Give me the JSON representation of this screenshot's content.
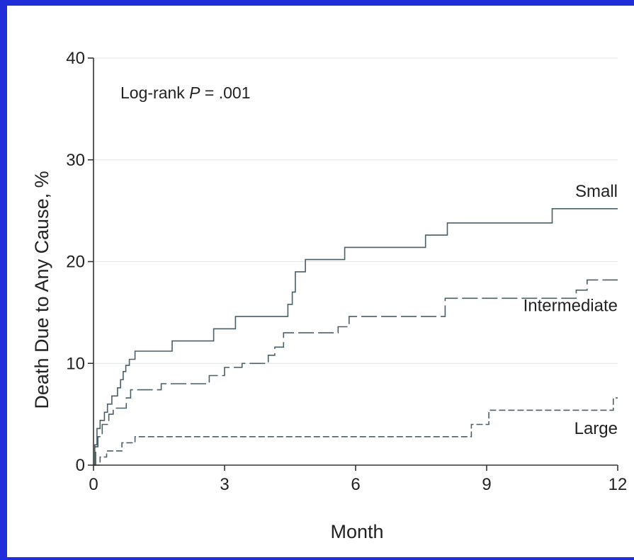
{
  "colors": {
    "frame": "#1f2ed8",
    "background": "#ffffff",
    "series_line": "#4a5f66",
    "grid": "#dfe6ea",
    "axis": "#333333",
    "text": "#222222"
  },
  "chart_data": {
    "type": "line",
    "step": true,
    "title": "",
    "xlabel": "Month",
    "ylabel": "Death Due to Any Cause, %",
    "xlim": [
      0,
      12
    ],
    "ylim": [
      0,
      40
    ],
    "xticks": [
      0,
      3,
      6,
      9,
      12
    ],
    "yticks": [
      0,
      10,
      20,
      30,
      40
    ],
    "grid": "horizontal",
    "annotation": {
      "prefix": "Log-rank ",
      "italic": "P",
      "suffix": " = .001"
    },
    "series": [
      {
        "name": "Small",
        "style": "solid",
        "points": [
          [
            0,
            0
          ],
          [
            0.03,
            2.0
          ],
          [
            0.08,
            3.6
          ],
          [
            0.15,
            4.4
          ],
          [
            0.25,
            5.2
          ],
          [
            0.32,
            6.0
          ],
          [
            0.42,
            6.8
          ],
          [
            0.55,
            7.6
          ],
          [
            0.62,
            8.4
          ],
          [
            0.68,
            9.2
          ],
          [
            0.74,
            9.8
          ],
          [
            0.82,
            10.4
          ],
          [
            0.95,
            11.2
          ],
          [
            1.8,
            12.2
          ],
          [
            2.75,
            13.4
          ],
          [
            3.25,
            14.6
          ],
          [
            4.45,
            15.8
          ],
          [
            4.55,
            17.0
          ],
          [
            4.62,
            19.0
          ],
          [
            4.85,
            20.2
          ],
          [
            5.75,
            21.4
          ],
          [
            7.6,
            22.6
          ],
          [
            8.1,
            23.8
          ],
          [
            10.5,
            25.2
          ],
          [
            12.0,
            25.2
          ]
        ]
      },
      {
        "name": "Intermediate",
        "style": "dashed",
        "points": [
          [
            0,
            0
          ],
          [
            0.05,
            1.8
          ],
          [
            0.1,
            2.8
          ],
          [
            0.2,
            4.0
          ],
          [
            0.35,
            5.0
          ],
          [
            0.45,
            5.6
          ],
          [
            0.75,
            6.6
          ],
          [
            0.85,
            7.4
          ],
          [
            1.55,
            8.0
          ],
          [
            2.65,
            8.8
          ],
          [
            3.0,
            9.6
          ],
          [
            3.4,
            10.0
          ],
          [
            4.0,
            10.8
          ],
          [
            4.15,
            11.6
          ],
          [
            4.35,
            13.0
          ],
          [
            5.6,
            13.6
          ],
          [
            5.85,
            14.6
          ],
          [
            8.05,
            16.4
          ],
          [
            11.05,
            17.2
          ],
          [
            11.3,
            18.2
          ],
          [
            12.0,
            18.2
          ]
        ]
      },
      {
        "name": "Large",
        "style": "short-dashed",
        "points": [
          [
            0,
            0
          ],
          [
            0.15,
            0.8
          ],
          [
            0.3,
            1.4
          ],
          [
            0.65,
            2.2
          ],
          [
            0.95,
            2.8
          ],
          [
            8.65,
            4.0
          ],
          [
            9.05,
            5.4
          ],
          [
            11.9,
            6.6
          ],
          [
            12.0,
            6.6
          ]
        ]
      }
    ]
  }
}
